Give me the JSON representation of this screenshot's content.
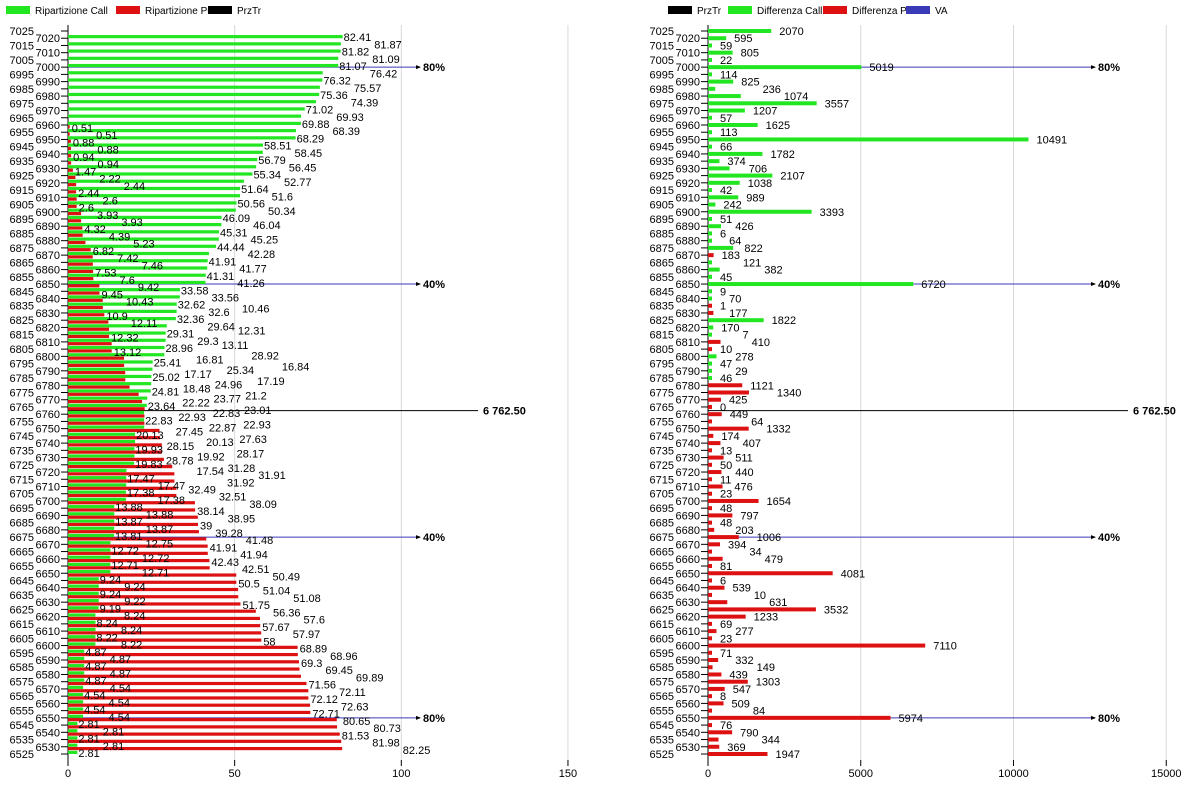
{
  "colors": {
    "call": "#22e622",
    "put": "#dd1111",
    "przTr": "#000000",
    "va": "#3a3ab8",
    "grid": "#d8d8d8"
  },
  "chart_data": [
    {
      "type": "bar",
      "orientation": "horizontal",
      "legend": [
        {
          "label": "Ripartizione Call",
          "color": "#22e622"
        },
        {
          "label": "Ripartizione Put",
          "color": "#dd1111"
        },
        {
          "label": "PrzTr",
          "color": "#000000"
        }
      ],
      "legend_position": "top-left",
      "xlim": [
        0,
        160
      ],
      "x_ticks": [
        "0",
        "50",
        "100",
        "150"
      ],
      "x_tick_values": [
        0,
        50,
        100,
        150
      ],
      "grid": true,
      "strike_start": 7025,
      "strike_end": 6525,
      "strike_step": 5,
      "series": [
        {
          "name": "Ripartizione Call",
          "values": [
            0,
            82.41,
            81.87,
            81.82,
            81.09,
            81.07,
            76.42,
            76.32,
            75.57,
            75.36,
            74.39,
            71.02,
            69.93,
            69.88,
            68.39,
            68.29,
            58.51,
            58.45,
            56.79,
            56.45,
            55.34,
            52.77,
            51.64,
            51.6,
            50.56,
            50.34,
            46.09,
            46.04,
            45.31,
            45.25,
            44.44,
            42.28,
            41.91,
            41.77,
            41.31,
            41.26,
            33.58,
            33.56,
            32.62,
            32.6,
            32.36,
            29.64,
            29.31,
            29.3,
            28.96,
            28.92,
            25.41,
            25.34,
            25.02,
            24.96,
            24.81,
            23.77,
            23.64,
            22.83,
            22.83,
            22.87,
            20.13,
            20.13,
            19.93,
            19.92,
            19.83,
            17.54,
            17.47,
            17.47,
            17.38,
            17.38,
            13.88,
            13.88,
            13.87,
            13.87,
            13.81,
            12.75,
            12.72,
            12.72,
            12.71,
            12.71,
            9.24,
            9.24,
            9.24,
            9.22,
            9.19,
            8.24,
            8.24,
            8.24,
            8.22,
            8.22,
            4.87,
            4.87,
            4.87,
            4.87,
            4.87,
            4.54,
            4.54,
            4.54,
            4.54,
            4.54,
            2.81,
            2.81,
            2.81,
            2.81,
            2.81
          ]
        },
        {
          "name": "Ripartizione Put",
          "values": [
            0,
            0,
            0,
            0,
            0,
            0,
            0,
            0,
            0,
            0,
            0,
            0,
            0,
            0.51,
            0.51,
            0.88,
            0.88,
            0.94,
            0.94,
            1.47,
            2.22,
            2.44,
            2.44,
            2.6,
            2.6,
            3.93,
            3.93,
            4.32,
            4.39,
            5.23,
            6.82,
            7.42,
            7.46,
            7.53,
            7.6,
            9.42,
            9.45,
            10.43,
            10.46,
            10.9,
            12.11,
            12.31,
            12.32,
            13.11,
            13.12,
            16.81,
            16.84,
            17.17,
            17.19,
            18.48,
            21.2,
            22.22,
            23.01,
            22.93,
            22.93,
            27.45,
            27.63,
            28.15,
            28.17,
            28.78,
            31.28,
            31.91,
            31.92,
            32.49,
            32.51,
            38.09,
            38.14,
            38.95,
            39,
            39.28,
            41.48,
            41.91,
            41.94,
            42.43,
            42.51,
            50.49,
            50.5,
            51.04,
            51.08,
            51.75,
            56.36,
            57.6,
            57.67,
            57.97,
            58,
            68.89,
            68.96,
            69.3,
            69.45,
            69.89,
            71.56,
            72.11,
            72.12,
            72.63,
            72.71,
            80.65,
            80.73,
            81.53,
            81.98,
            82.25,
            0
          ]
        }
      ],
      "przTr": {
        "strike": 6762.5,
        "label": "6 762.50"
      },
      "levels": [
        {
          "strike": 7000,
          "label": "80%"
        },
        {
          "strike": 6850,
          "label": "40%"
        },
        {
          "strike": 6675,
          "label": "40%"
        },
        {
          "strike": 6550,
          "label": "80%"
        }
      ]
    },
    {
      "type": "bar",
      "orientation": "horizontal",
      "legend": [
        {
          "label": "PrzTr",
          "color": "#000000"
        },
        {
          "label": "Differenza Call",
          "color": "#22e622"
        },
        {
          "label": "Differenza Put",
          "color": "#dd1111"
        },
        {
          "label": "VA",
          "color": "#3a3ab8"
        }
      ],
      "legend_position": "top-left",
      "xlim": [
        0,
        16000
      ],
      "x_ticks": [
        "0",
        "5000",
        "10000",
        "15000"
      ],
      "x_tick_values": [
        0,
        5000,
        10000,
        15000
      ],
      "grid": true,
      "strike_start": 7025,
      "strike_end": 6525,
      "strike_step": 5,
      "values": [
        2070,
        595,
        59,
        805,
        22,
        5019,
        114,
        825,
        236,
        1074,
        3557,
        1207,
        57,
        1625,
        113,
        10491,
        66,
        1782,
        374,
        706,
        2107,
        1038,
        42,
        989,
        242,
        3393,
        51,
        426,
        6,
        64,
        822,
        183,
        121,
        382,
        45,
        6720,
        9,
        70,
        1,
        177,
        1822,
        170,
        7,
        410,
        10,
        278,
        47,
        29,
        46,
        1121,
        1340,
        425,
        0,
        449,
        64,
        1332,
        174,
        407,
        13,
        511,
        50,
        440,
        11,
        476,
        23,
        1654,
        48,
        797,
        48,
        203,
        1006,
        394,
        34,
        479,
        81,
        4081,
        6,
        539,
        10,
        631,
        3532,
        1233,
        69,
        277,
        23,
        7110,
        71,
        332,
        149,
        439,
        1303,
        547,
        8,
        509,
        84,
        5974,
        76,
        790,
        344,
        369,
        1947
      ],
      "side": "CCCCCCCCCCCCCCCCCCCCCCCCCCCCCCCPCCCCCCPPCCCPPCCCCPPPPPPPPPPPPPPPPPPPPPPPPPPPPPPPPPPPPPPPPPPPPPPPPPPP",
      "side_legend": {
        "C": "Differenza Call",
        "P": "Differenza Put"
      },
      "przTr": {
        "strike": 6762.5,
        "label": "6 762.50"
      },
      "levels": [
        {
          "strike": 7000,
          "label": "80%"
        },
        {
          "strike": 6850,
          "label": "40%"
        },
        {
          "strike": 6675,
          "label": "40%"
        },
        {
          "strike": 6550,
          "label": "80%"
        }
      ]
    }
  ]
}
